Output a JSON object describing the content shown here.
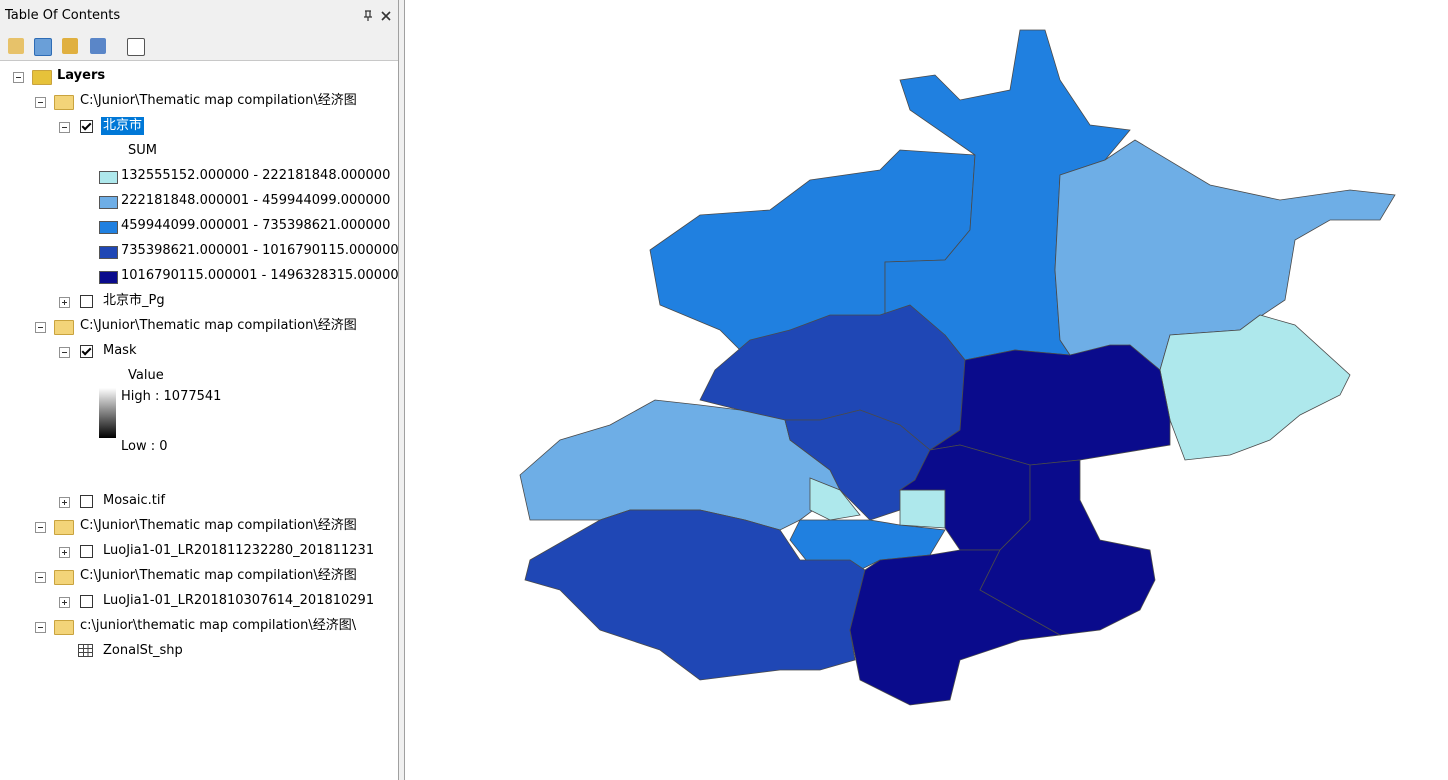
{
  "panel": {
    "title": "Table Of Contents"
  },
  "toc": {
    "root": "Layers",
    "groups": [
      {
        "path": "C:\\Junior\\Thematic map compilation\\经济图",
        "layers": [
          {
            "name": "北京市",
            "field": "SUM",
            "classes": [
              "132555152.000000 - 222181848.000000",
              "222181848.000001 - 459944099.000000",
              "459944099.000001 - 735398621.000000",
              "735398621.000001 - 1016790115.000000",
              "1016790115.000001 - 1496328315.000000"
            ]
          },
          {
            "name": "北京市_Pg"
          }
        ]
      },
      {
        "path": "C:\\Junior\\Thematic map compilation\\经济图",
        "layers": [
          {
            "name": "Mask",
            "field": "Value",
            "high": "High : 1077541",
            "low": "Low : 0"
          },
          {
            "name": "Mosaic.tif"
          }
        ]
      },
      {
        "path": "C:\\Junior\\Thematic map compilation\\经济图",
        "layers": [
          {
            "name": "LuoJia1-01_LR201811232280_201811231"
          }
        ]
      },
      {
        "path": "C:\\Junior\\Thematic map compilation\\经济图",
        "layers": [
          {
            "name": "LuoJia1-01_LR201810307614_201810291"
          }
        ]
      },
      {
        "path": "c:\\junior\\thematic map compilation\\经济图\\",
        "layers": [
          {
            "name": "ZonalSt_shp"
          }
        ]
      }
    ]
  }
}
